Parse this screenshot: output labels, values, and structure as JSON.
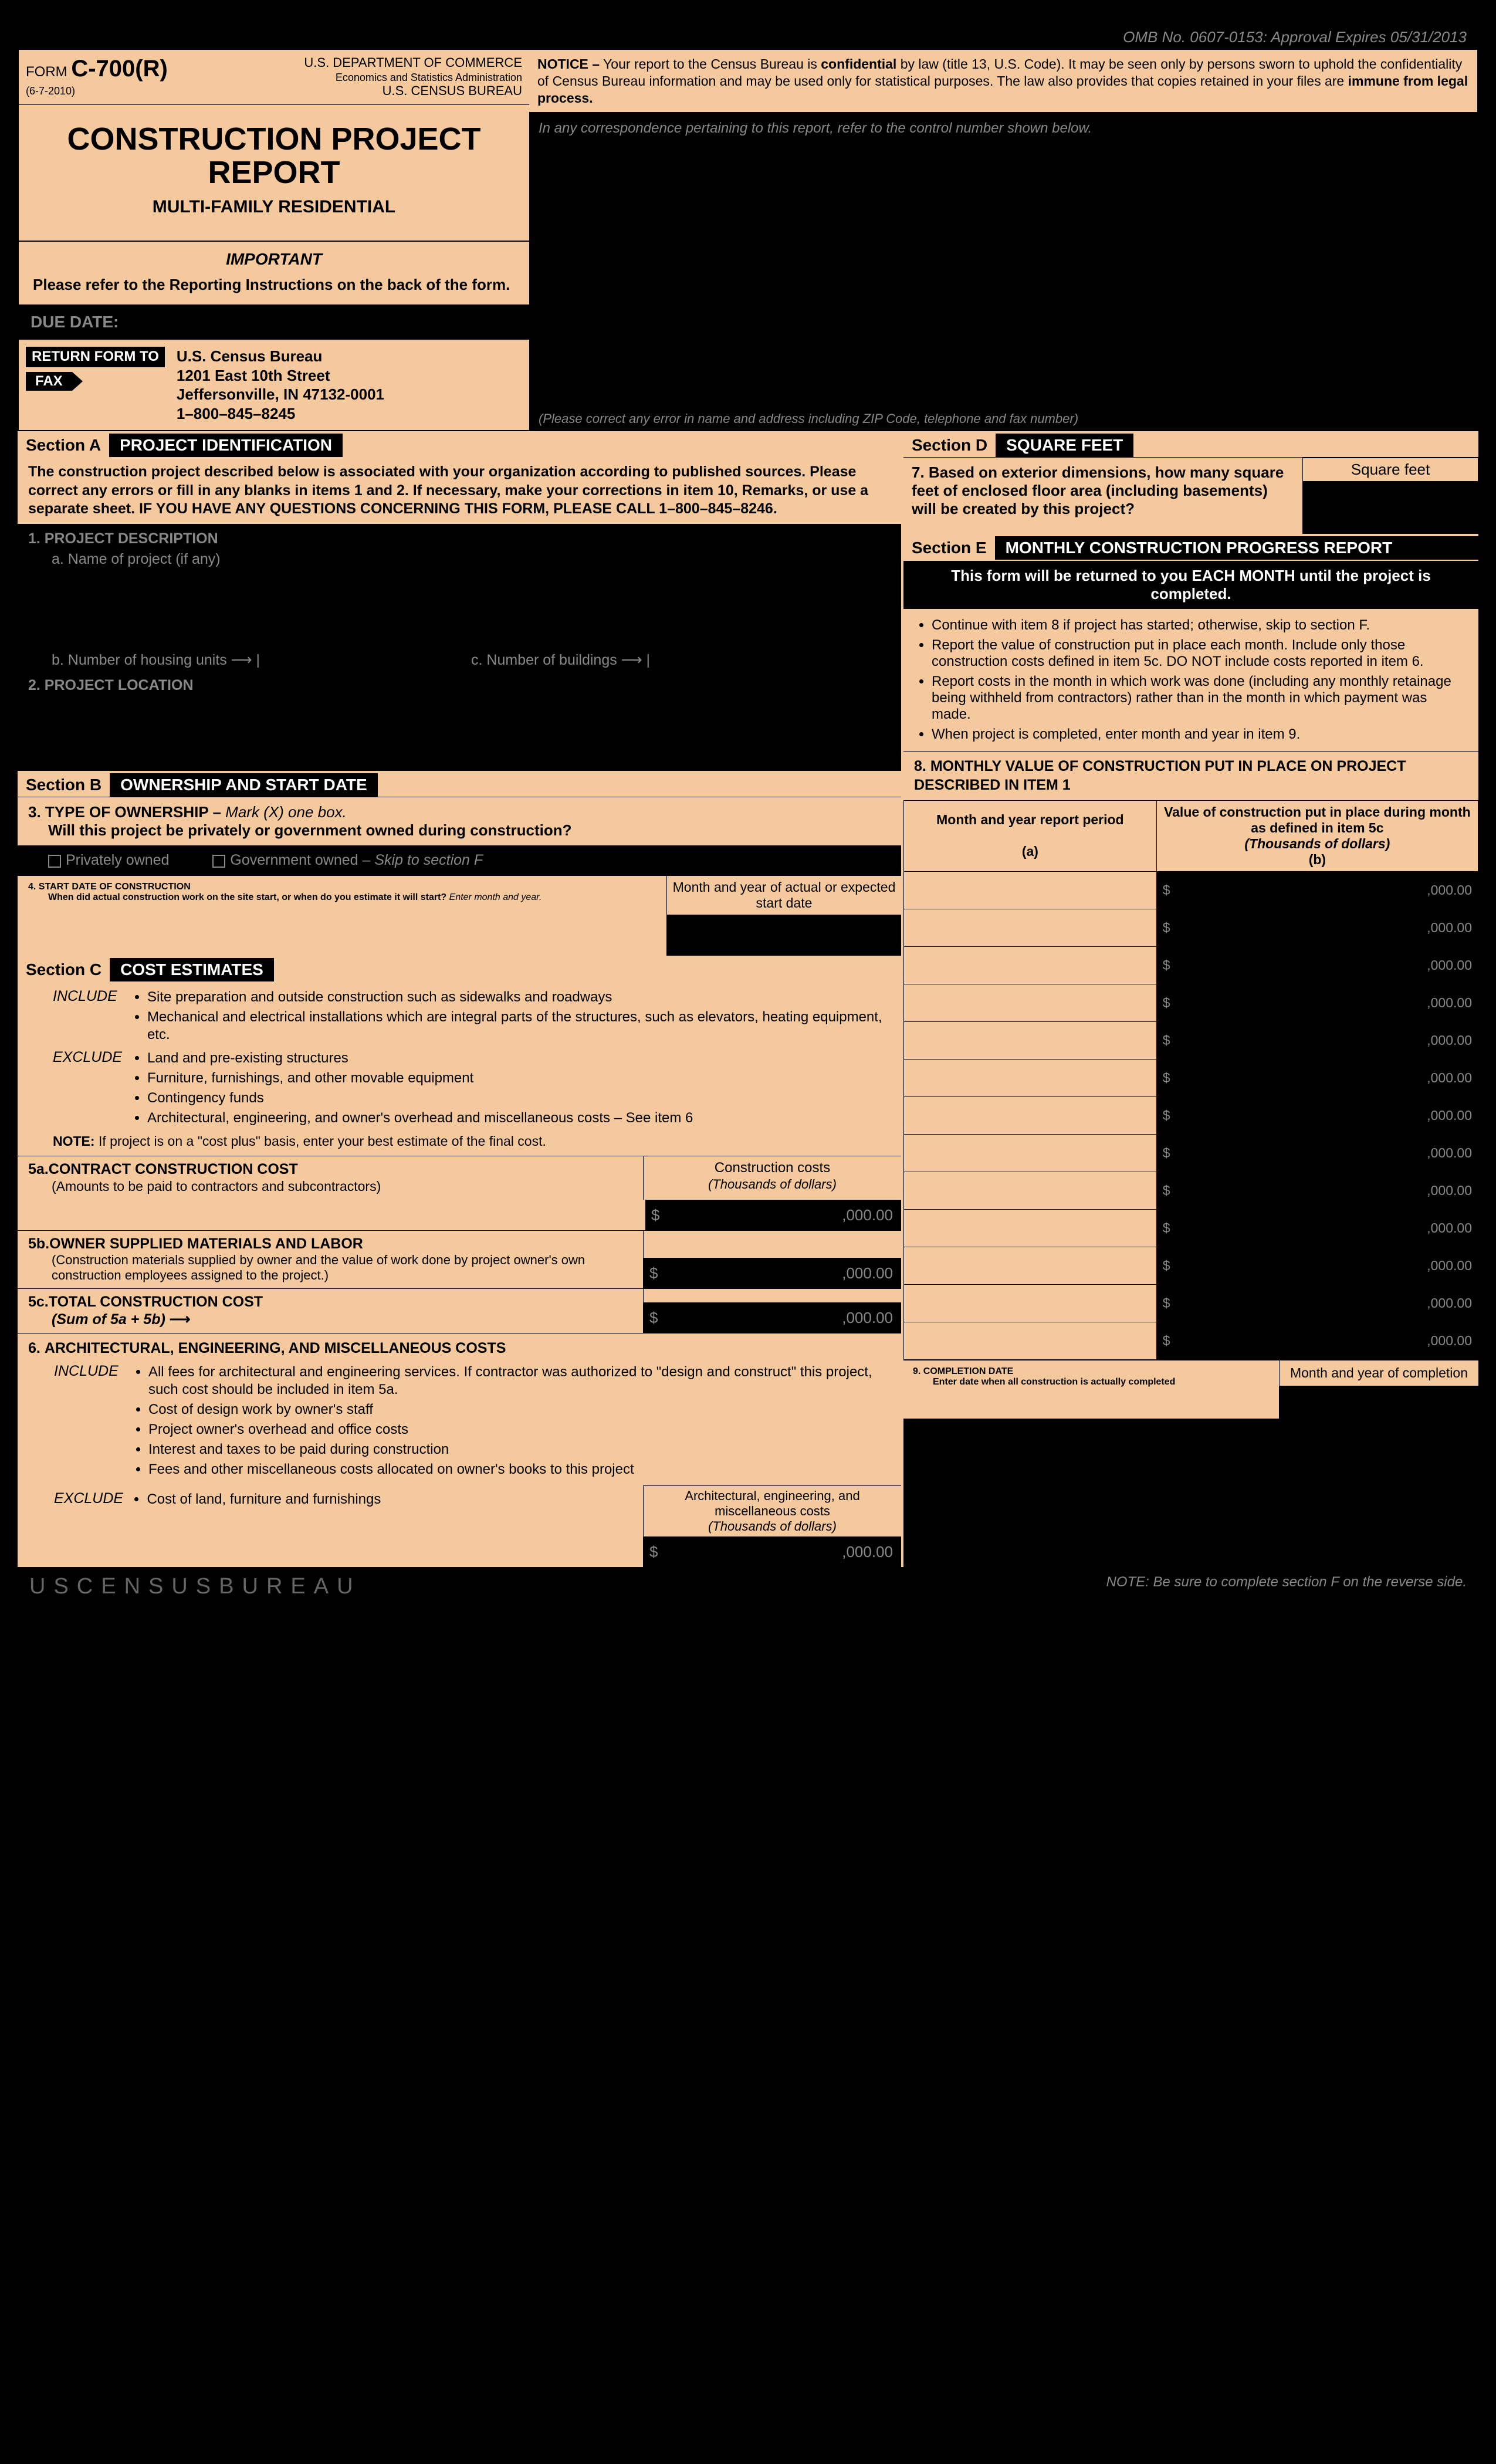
{
  "omb": "OMB No. 0607-0153: Approval Expires 05/31/2013",
  "form": {
    "prefix": "FORM",
    "number": "C-700(R)",
    "date": "(6-7-2010)",
    "dept1": "U.S. DEPARTMENT OF COMMERCE",
    "dept2": "Economics and Statistics Administration",
    "dept3": "U.S. CENSUS BUREAU"
  },
  "title": "CONSTRUCTION PROJECT REPORT",
  "subtitle": "MULTI-FAMILY RESIDENTIAL",
  "important": "IMPORTANT",
  "instr_note": "Please refer to the Reporting Instructions on the back of the form.",
  "due_label": "DUE DATE:",
  "return_label": "RETURN FORM TO",
  "fax_label": "FAX",
  "address": {
    "l1": "U.S. Census Bureau",
    "l2": "1201 East 10th Street",
    "l3": "Jeffersonville, IN 47132-0001",
    "l4": "1–800–845–8245"
  },
  "notice": {
    "lead": "NOTICE –",
    "body1": " Your report to the Census Bureau is ",
    "conf": "confidential",
    "body2": " by law (title 13, U.S. Code). It may be seen only by persons sworn to uphold the confidentiality of Census Bureau information and may be used only for statistical purposes. The law also provides that copies retained in your files are ",
    "immune": "immune from legal process."
  },
  "corr_note": "In any correspondence pertaining to this report, refer to the control number shown below.",
  "correct_note": "(Please correct any error in name and address including ZIP Code, telephone and fax number)",
  "sectionA": {
    "tag": "Section A",
    "title": "PROJECT IDENTIFICATION"
  },
  "sectionA_text": "The construction project described below is associated with your organization according to published sources. Please correct any errors or fill in any blanks in items 1 and 2. If necessary, make your corrections in item 10, Remarks, or use a separate sheet. IF YOU HAVE ANY QUESTIONS CONCERNING THIS FORM, PLEASE CALL 1–800–845–8246.",
  "item1": {
    "label": "1.  PROJECT DESCRIPTION",
    "a": "a. Name of project (if any)",
    "b": "b. Number of housing units",
    "c": "c. Number of buildings"
  },
  "item2": "2.  PROJECT LOCATION",
  "sectionB": {
    "tag": "Section B",
    "title": "OWNERSHIP AND START DATE"
  },
  "item3": {
    "num": "3.",
    "title": "TYPE OF OWNERSHIP – ",
    "inst": "Mark (X) one box.",
    "q": "Will this project be privately or government owned during construction?",
    "opt1": "Privately owned",
    "opt2": "Government owned – ",
    "skip": "Skip to section F"
  },
  "item4": {
    "num": "4.",
    "title": "START DATE OF CONSTRUCTION",
    "q": "When did actual construction work on the site start, or when do you estimate it will start? ",
    "inst": "Enter month and year.",
    "col": "Month and year of actual or expected start date"
  },
  "sectionC": {
    "tag": "Section C",
    "title": "COST ESTIMATES"
  },
  "include_label": "INCLUDE",
  "exclude_label": "EXCLUDE",
  "costC_include": [
    "Site preparation and outside construction such as sidewalks and roadways",
    "Mechanical and electrical installations which are integral parts of the structures, such as elevators, heating equipment, etc."
  ],
  "costC_exclude": [
    "Land and pre-existing structures",
    "Furniture, furnishings, and other movable equipment",
    "Contingency funds",
    "Architectural, engineering, and owner's overhead and miscellaneous costs – See item 6"
  ],
  "costC_note_lead": "NOTE:",
  "costC_note": " If project is on a \"cost plus\" basis, enter your best estimate of the final cost.",
  "item5a": {
    "num": "5a.",
    "title": "CONTRACT CONSTRUCTION COST",
    "desc": "(Amounts to be paid to contractors and subcontractors)",
    "col": "Construction costs",
    "unit": "(Thousands of dollars)"
  },
  "item5b": {
    "num": "5b.",
    "title": "OWNER SUPPLIED MATERIALS AND LABOR",
    "desc": "(Construction materials supplied by owner and the value of work done by project owner's own construction employees assigned to the project.)"
  },
  "item5c": {
    "num": "5c.",
    "title": "TOTAL CONSTRUCTION COST",
    "desc": "(Sum of 5a + 5b)"
  },
  "item6": {
    "num": "6.",
    "title": "ARCHITECTURAL, ENGINEERING, AND MISCELLANEOUS COSTS",
    "include": [
      "All fees for architectural and engineering services. If contractor was authorized to \"design and construct\" this project, such cost should be included in item 5a.",
      "Cost of design work by owner's staff",
      "Project owner's overhead and office costs",
      "Interest and taxes to be paid during construction",
      "Fees and other miscellaneous costs allocated on owner's books to this project"
    ],
    "exclude": [
      "Cost of land, furniture and furnishings"
    ],
    "col": "Architectural, engineering, and miscellaneous costs",
    "unit": "(Thousands of dollars)"
  },
  "sectionD": {
    "tag": "Section D",
    "title": "SQUARE FEET"
  },
  "item7": {
    "num": "7.",
    "q": "Based on exterior dimensions, how many square feet of enclosed floor area (including basements) will be created by this project?",
    "label": "Square feet"
  },
  "sectionE": {
    "tag": "Section E",
    "title": "MONTHLY CONSTRUCTION PROGRESS REPORT"
  },
  "sectionE_head": "This form will be returned to you EACH MONTH until the project is completed.",
  "sectionE_bullets": [
    "Continue with item 8 if project has started; otherwise, skip to section F.",
    "Report the value of construction put in place each month. Include only those construction costs defined in item 5c. DO NOT include costs reported in item 6.",
    "Report costs in the month in which work was done (including any monthly retainage being withheld from contractors) rather than in the month in which payment was made.",
    "When project is completed, enter month and year in item 9."
  ],
  "item8": {
    "num": "8.",
    "title": "MONTHLY VALUE OF CONSTRUCTION PUT IN PLACE ON PROJECT DESCRIBED IN ITEM 1",
    "col_a": "Month and year report period",
    "col_a_sub": "(a)",
    "col_b": "Value of construction put in place during month as defined in item 5c",
    "col_b_unit": "(Thousands of dollars)",
    "col_b_sub": "(b)",
    "rows": 13,
    "amt": ",000.00"
  },
  "item9": {
    "num": "9.",
    "title": "COMPLETION DATE",
    "q": "Enter date when all construction is actually completed",
    "col": "Month and year of completion"
  },
  "dollar": "$",
  "amt": ",000.00",
  "footer_census": "USCENSUSBUREAU",
  "footer_note": "NOTE: Be sure to complete section F on the reverse side.",
  "colors": {
    "peach": "#f5c99e",
    "black": "#000000",
    "ghost": "#888888"
  }
}
